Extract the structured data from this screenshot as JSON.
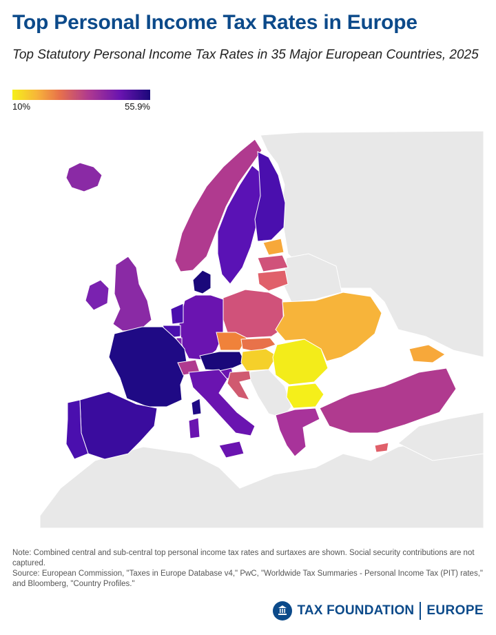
{
  "header": {
    "title": "Top Personal Income Tax Rates in Europe",
    "subtitle": "Top Statutory Personal Income Tax Rates in 35 Major European Countries, 2025"
  },
  "legend": {
    "min_label": "10%",
    "max_label": "55.9%",
    "min_value": 10,
    "max_value": 55.9,
    "color_low": "#f5ef1a",
    "color_mid_low": "#f7b43a",
    "color_mid": "#b03a8f",
    "color_high": "#1a087a"
  },
  "map": {
    "ocean_color": "#ffffff",
    "land_color": "#e8e8e8",
    "regions": [
      {
        "id": "iceland",
        "color": "#8a2aa5"
      },
      {
        "id": "ireland",
        "color": "#7a22b0"
      },
      {
        "id": "uk",
        "color": "#8a2aa5"
      },
      {
        "id": "norway",
        "color": "#b03a8f"
      },
      {
        "id": "sweden",
        "color": "#5a12b5"
      },
      {
        "id": "finland",
        "color": "#4a0fae"
      },
      {
        "id": "denmark",
        "color": "#1a087a"
      },
      {
        "id": "estonia",
        "color": "#f7a83a"
      },
      {
        "id": "latvia",
        "color": "#d0527a"
      },
      {
        "id": "lithuania",
        "color": "#e0606a"
      },
      {
        "id": "poland",
        "color": "#d0527a"
      },
      {
        "id": "germany",
        "color": "#6a14b0"
      },
      {
        "id": "netherlands",
        "color": "#4a0fae"
      },
      {
        "id": "belgium",
        "color": "#4a0fae"
      },
      {
        "id": "luxembourg",
        "color": "#7a22b0"
      },
      {
        "id": "france",
        "color": "#1f0a85"
      },
      {
        "id": "switzerland",
        "color": "#b03a8f"
      },
      {
        "id": "czechia",
        "color": "#f0823a"
      },
      {
        "id": "slovakia",
        "color": "#e8724a"
      },
      {
        "id": "austria",
        "color": "#1a087a"
      },
      {
        "id": "hungary",
        "color": "#f5d02a"
      },
      {
        "id": "slovenia",
        "color": "#6a14b0"
      },
      {
        "id": "croatia",
        "color": "#d05a70"
      },
      {
        "id": "romania",
        "color": "#f3ec1a"
      },
      {
        "id": "bulgaria",
        "color": "#f5ef1a"
      },
      {
        "id": "greece",
        "color": "#a8339a"
      },
      {
        "id": "italy",
        "color": "#6a14b0"
      },
      {
        "id": "spain",
        "color": "#3a0c9e"
      },
      {
        "id": "portugal",
        "color": "#4a0fae"
      },
      {
        "id": "turkey",
        "color": "#b03a8f"
      },
      {
        "id": "cyprus",
        "color": "#e0606a"
      },
      {
        "id": "ukraine",
        "color": "#f7b43a"
      },
      {
        "id": "georgia",
        "color": "#f7a83a"
      }
    ]
  },
  "note": {
    "text": "Note: Combined central and sub-central top personal income tax rates and surtaxes are shown. Social security contributions are not captured.",
    "source": "Source: European Commission, \"Taxes in Europe Database v4,\" PwC, \"Worldwide Tax Summaries - Personal Income Tax (PIT) rates,\" and Bloomberg, \"Country Profiles.\""
  },
  "brand": {
    "name": "TAX FOUNDATION",
    "region": "EUROPE",
    "color": "#0c4a8a"
  }
}
